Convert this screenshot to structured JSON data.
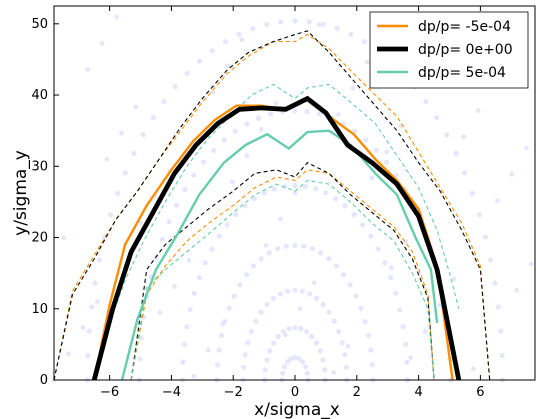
{
  "chart_data": {
    "type": "line",
    "title": "",
    "xlabel": "x/sigma_x",
    "ylabel": "y/sigma_y",
    "xlim": [
      -7.8,
      7.8
    ],
    "ylim": [
      0,
      52.5
    ],
    "xticks": [
      -6,
      -4,
      -2,
      0,
      2,
      4,
      6
    ],
    "yticks": [
      0,
      10,
      20,
      30,
      40,
      50
    ],
    "xtick_labels": [
      "−6",
      "−4",
      "−2",
      "0",
      "2",
      "4",
      "6"
    ],
    "ytick_labels": [
      "0",
      "10",
      "20",
      "30",
      "40",
      "50"
    ],
    "grid": false,
    "legend_position": "top-right",
    "colors": {
      "neg": "#ff8c00",
      "zero": "#000000",
      "pos": "#66cdaa",
      "background_points": "#e6e6fa"
    },
    "series": [
      {
        "name": "dp/p= -5e-04",
        "color": "#ff8c00",
        "style": "solid",
        "width": "medium",
        "x": [
          -6.5,
          -6.0,
          -5.5,
          -4.8,
          -4.0,
          -3.3,
          -2.6,
          -1.9,
          -1.1,
          -0.3,
          0.4,
          1.1,
          1.9,
          2.6,
          3.3,
          4.0,
          4.6,
          5.1
        ],
        "y": [
          0,
          10.5,
          19,
          24.5,
          29.5,
          33.5,
          36.5,
          38.5,
          38.5,
          38.0,
          39.5,
          37.0,
          34.5,
          31.0,
          28.0,
          24.0,
          16.0,
          0
        ]
      },
      {
        "name": "dp/p= 0e+00",
        "color": "#000000",
        "style": "solid",
        "width": "thick",
        "x": [
          -6.5,
          -5.9,
          -5.3,
          -4.6,
          -3.9,
          -3.2,
          -2.5,
          -1.8,
          -1.1,
          -0.3,
          0.4,
          1.0,
          1.7,
          2.5,
          3.3,
          4.0,
          4.6,
          5.3
        ],
        "y": [
          0,
          10.0,
          18.0,
          23.5,
          29.0,
          33.0,
          36.0,
          38.0,
          38.2,
          38.0,
          39.5,
          37.5,
          33.0,
          30.5,
          27.5,
          23.0,
          15.5,
          0
        ]
      },
      {
        "name": "dp/p= 5e-04",
        "color": "#66cdaa",
        "style": "solid",
        "width": "medium",
        "x": [
          -5.6,
          -5.1,
          -4.5,
          -3.8,
          -3.1,
          -2.3,
          -1.6,
          -0.9,
          -0.2,
          0.4,
          1.1,
          1.8,
          2.6,
          3.3,
          3.9,
          4.4,
          4.6
        ],
        "y": [
          0,
          8.5,
          15.5,
          20.5,
          26.0,
          30.5,
          33.0,
          34.5,
          32.5,
          34.8,
          35.0,
          33.0,
          29.0,
          26.0,
          20.0,
          15.5,
          8.0
        ]
      },
      {
        "name": "",
        "color": "#ff8c00",
        "style": "dashed",
        "width": "thin",
        "x": [
          -7.8,
          -7.2,
          -6.5,
          -5.8,
          -5.1,
          -4.4,
          -3.7,
          -3.0,
          -2.2,
          -1.5,
          -0.7,
          0.0,
          0.4,
          1.1,
          1.9,
          2.6,
          3.3,
          4.0,
          4.7,
          5.4,
          6.0,
          6.3
        ],
        "y": [
          0,
          12.5,
          17.5,
          22.5,
          26.5,
          31.0,
          35.0,
          39.0,
          43.0,
          45.5,
          47.5,
          47.5,
          48.5,
          46.5,
          43.0,
          40.0,
          37.0,
          32.0,
          27.0,
          22.0,
          16.0,
          0
        ]
      },
      {
        "name": "",
        "color": "#000000",
        "style": "dashed",
        "width": "thin",
        "x": [
          -7.8,
          -7.2,
          -6.5,
          -5.8,
          -5.1,
          -4.4,
          -3.7,
          -3.0,
          -2.2,
          -1.5,
          -0.7,
          0.0,
          0.4,
          1.1,
          1.9,
          2.6,
          3.3,
          4.0,
          4.7,
          5.4,
          6.0,
          6.3
        ],
        "y": [
          0,
          12.0,
          17.0,
          22.5,
          26.5,
          31.0,
          35.5,
          39.5,
          43.5,
          46.0,
          47.5,
          48.5,
          49.0,
          46.0,
          42.0,
          38.5,
          35.0,
          30.5,
          26.5,
          21.0,
          15.5,
          0
        ]
      },
      {
        "name": "",
        "color": "#66cdaa",
        "style": "dashed",
        "width": "thin",
        "x": [
          -6.0,
          -5.5,
          -4.9,
          -4.2,
          -3.5,
          -2.8,
          -2.1,
          -1.4,
          -0.7,
          0.0,
          0.4,
          1.1,
          1.8,
          2.6,
          3.3,
          4.0,
          4.6,
          5.0,
          5.3
        ],
        "y": [
          8.0,
          14.0,
          19.5,
          25.0,
          30.0,
          34.0,
          37.0,
          40.0,
          41.5,
          39.5,
          41.0,
          41.5,
          39.0,
          36.0,
          31.5,
          27.0,
          21.0,
          15.0,
          10.0
        ]
      },
      {
        "name": "",
        "color": "#ff8c00",
        "style": "dashed",
        "width": "thin",
        "x": [
          -5.3,
          -4.8,
          -4.2,
          -3.5,
          -2.8,
          -2.0,
          -1.3,
          -0.6,
          0.0,
          0.4,
          1.1,
          1.8,
          2.5,
          3.2,
          3.8,
          4.3,
          4.5
        ],
        "y": [
          0,
          12.0,
          16.0,
          19.5,
          22.0,
          24.5,
          27.0,
          28.5,
          28.0,
          29.5,
          29.0,
          26.5,
          24.0,
          21.5,
          18.0,
          12.0,
          0
        ]
      },
      {
        "name": "",
        "color": "#000000",
        "style": "dashed",
        "width": "thin",
        "x": [
          -5.3,
          -4.8,
          -4.2,
          -3.5,
          -2.8,
          -2.0,
          -1.3,
          -0.6,
          0.0,
          0.4,
          1.1,
          1.8,
          2.5,
          3.2,
          3.8,
          4.3,
          4.5
        ],
        "y": [
          0,
          15.5,
          19.0,
          21.5,
          24.0,
          26.5,
          29.0,
          29.5,
          28.5,
          30.5,
          29.0,
          26.0,
          23.5,
          21.0,
          17.0,
          11.5,
          0
        ]
      },
      {
        "name": "",
        "color": "#66cdaa",
        "style": "dashed",
        "width": "thin",
        "x": [
          -5.3,
          -4.8,
          -4.2,
          -3.5,
          -2.8,
          -2.0,
          -1.3,
          -0.6,
          0.0,
          0.4,
          1.1,
          1.8,
          2.5,
          3.2,
          3.8,
          4.3,
          4.5
        ],
        "y": [
          0,
          13.0,
          15.5,
          18.0,
          20.5,
          23.5,
          26.0,
          27.5,
          26.5,
          28.0,
          27.5,
          25.0,
          22.0,
          19.5,
          15.0,
          10.0,
          0
        ]
      }
    ],
    "background_rings_radii": [
      1.5,
      3.5,
      6.0,
      9.0,
      13.0,
      18.0,
      24.0
    ]
  }
}
